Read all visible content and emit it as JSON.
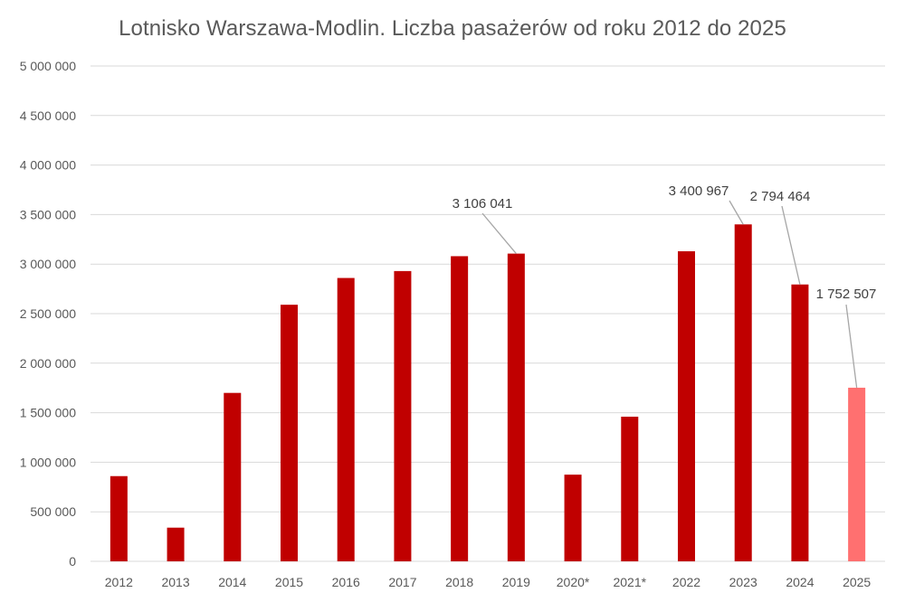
{
  "chart_data": {
    "type": "bar",
    "title": "Lotnisko Warszawa-Modlin. Liczba pasażerów od roku 2012 do 2025",
    "xlabel": "",
    "ylabel": "",
    "ylim": [
      0,
      5000000
    ],
    "y_ticks": [
      0,
      500000,
      1000000,
      1500000,
      2000000,
      2500000,
      3000000,
      3500000,
      4000000,
      4500000,
      5000000
    ],
    "y_tick_labels": [
      "0",
      "500 000",
      "1 000 000",
      "1 500 000",
      "2 000 000",
      "2 500 000",
      "3 000 000",
      "3 500 000",
      "4 000 000",
      "4 500 000",
      "5 000 000"
    ],
    "grid": true,
    "legend": "none",
    "categories": [
      "2012",
      "2013",
      "2014",
      "2015",
      "2016",
      "2017",
      "2018",
      "2019",
      "2020*",
      "2021*",
      "2022",
      "2023",
      "2024",
      "2025"
    ],
    "values": [
      860000,
      340000,
      1700000,
      2590000,
      2860000,
      2930000,
      3080000,
      3106041,
      875000,
      1460000,
      3130000,
      3400967,
      2794464,
      1752507
    ],
    "data_labels": [
      {
        "category": "2019",
        "text": "3 106 041"
      },
      {
        "category": "2023",
        "text": "3 400 967"
      },
      {
        "category": "2024",
        "text": "2 794 464"
      },
      {
        "category": "2025",
        "text": "1 752 507"
      }
    ],
    "colors": {
      "bar": "#C00000",
      "bar_highlight": "#FF7070",
      "highlight_category": "2025",
      "grid": "#D9D9D9",
      "axis_text": "#595959",
      "title": "#595959",
      "label_text": "#404040",
      "leader_line": "#A6A6A6"
    }
  }
}
